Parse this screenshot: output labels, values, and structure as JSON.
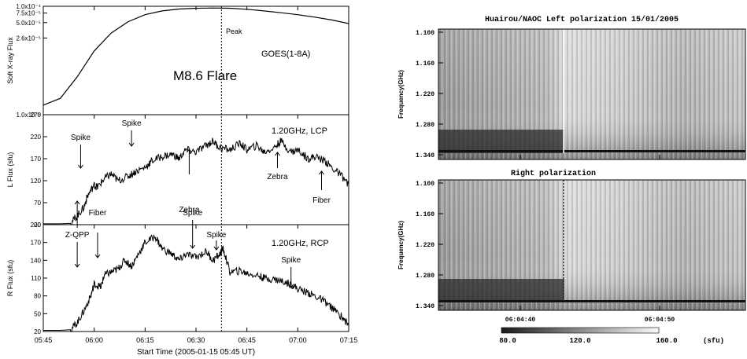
{
  "chart_data": [
    {
      "type": "line",
      "panel": "soft-xray",
      "ylabel": "Soft X-ray Flux",
      "y_ticks": [
        "1.0x10⁻⁴",
        "7.5x10⁻⁵",
        "5.0x10⁻⁵",
        "2.6x10⁻⁵",
        "1.0x10⁻⁶"
      ],
      "y_tick_values": [
        0.0001,
        7.5e-05,
        5e-05,
        2.6e-05,
        1e-06
      ],
      "ylim": [
        1e-06,
        0.0001
      ],
      "xlim_minutes_from_0545": [
        0,
        90
      ],
      "series": [
        {
          "name": "GOES(1-8A)",
          "x": [
            0,
            5,
            10,
            15,
            20,
            25,
            30,
            35,
            40,
            45,
            50,
            55,
            60,
            65,
            70,
            75,
            80,
            85,
            90
          ],
          "y": [
            1.5e-06,
            2e-06,
            5e-06,
            1.5e-05,
            3.2e-05,
            5.2e-05,
            7e-05,
            8.2e-05,
            8.9e-05,
            9.2e-05,
            9.3e-05,
            9.2e-05,
            8.8e-05,
            8.2e-05,
            7.6e-05,
            7e-05,
            6.3e-05,
            5.6e-05,
            4.8e-05
          ]
        }
      ],
      "annotations": [
        "Peak",
        "M8.6 Flare"
      ],
      "peak_x": 52.5
    },
    {
      "type": "line",
      "panel": "lcp",
      "title": "1.20GHz, LCP",
      "ylabel": "L Flux (sfu)",
      "y_ticks": [
        "270",
        "220",
        "170",
        "120",
        "70",
        "20"
      ],
      "ylim": [
        20,
        270
      ],
      "series": [
        {
          "name": "LCP",
          "x": [
            0,
            5,
            8,
            10,
            12,
            13,
            15,
            16,
            18,
            20,
            22,
            25,
            27,
            30,
            32,
            35,
            38,
            40,
            42,
            45,
            48,
            50,
            52,
            55,
            58,
            60,
            63,
            65,
            68,
            70,
            73,
            75,
            78,
            80,
            83,
            85,
            88,
            90
          ],
          "y": [
            22,
            22,
            23,
            40,
            60,
            85,
            110,
            105,
            125,
            135,
            120,
            130,
            140,
            150,
            165,
            175,
            180,
            170,
            190,
            185,
            200,
            210,
            195,
            190,
            205,
            190,
            200,
            185,
            195,
            210,
            185,
            190,
            170,
            175,
            165,
            150,
            130,
            110
          ]
        }
      ],
      "annotations": [
        {
          "text": "Spike",
          "x": 11
        },
        {
          "text": "Spike",
          "x": 26
        },
        {
          "text": "Zebra",
          "x": 43
        },
        {
          "text": "Zebra",
          "x": 69
        },
        {
          "text": "Fiber",
          "x": 82
        }
      ]
    },
    {
      "type": "line",
      "panel": "rcp",
      "title": "1.20GHz, RCP",
      "xlabel": "Start Time (2005-01-15 05:45 UT)",
      "ylabel": "R Flux (sfu)",
      "y_ticks": [
        "200",
        "170",
        "140",
        "110",
        "80",
        "50",
        "20"
      ],
      "ylim": [
        20,
        200
      ],
      "x_ticks": [
        "05:45",
        "06:00",
        "06:15",
        "06:30",
        "06:45",
        "07:00",
        "07:15"
      ],
      "series": [
        {
          "name": "RCP",
          "x": [
            0,
            5,
            8,
            10,
            12,
            14,
            15,
            17,
            18,
            20,
            22,
            24,
            26,
            28,
            30,
            33,
            35,
            38,
            40,
            42,
            45,
            48,
            50,
            52,
            53,
            55,
            58,
            60,
            63,
            65,
            68,
            70,
            73,
            75,
            78,
            80,
            83,
            85,
            88,
            90
          ],
          "y": [
            22,
            22,
            23,
            35,
            55,
            80,
            100,
            95,
            115,
            120,
            125,
            140,
            130,
            150,
            170,
            180,
            160,
            150,
            140,
            150,
            145,
            155,
            140,
            150,
            160,
            120,
            122,
            118,
            115,
            110,
            108,
            105,
            100,
            92,
            85,
            80,
            70,
            60,
            45,
            30
          ]
        }
      ],
      "annotations": [
        {
          "text": "Z-QPP",
          "x": 10
        },
        {
          "text": "Fiber",
          "x": 16
        },
        {
          "text": "Spike",
          "x": 44
        },
        {
          "text": "Spike",
          "x": 51
        },
        {
          "text": "Spike",
          "x": 73
        }
      ]
    },
    {
      "type": "heatmap",
      "panel": "spectrogram",
      "title": "Huairou/NAOC  Left polarization  15/01/2005",
      "subtitle": "Right polarization",
      "ylabel": "Frequency(GHz)",
      "y_ticks": [
        "1.100",
        "1.160",
        "1.220",
        "1.280",
        "1.340"
      ],
      "x_ticks": [
        "06:04:40",
        "06:04:50"
      ],
      "colorbar": {
        "ticks": [
          "80.0",
          "120.0",
          "160.0"
        ],
        "unit": "(sfu)",
        "range": [
          80,
          160
        ]
      }
    }
  ]
}
